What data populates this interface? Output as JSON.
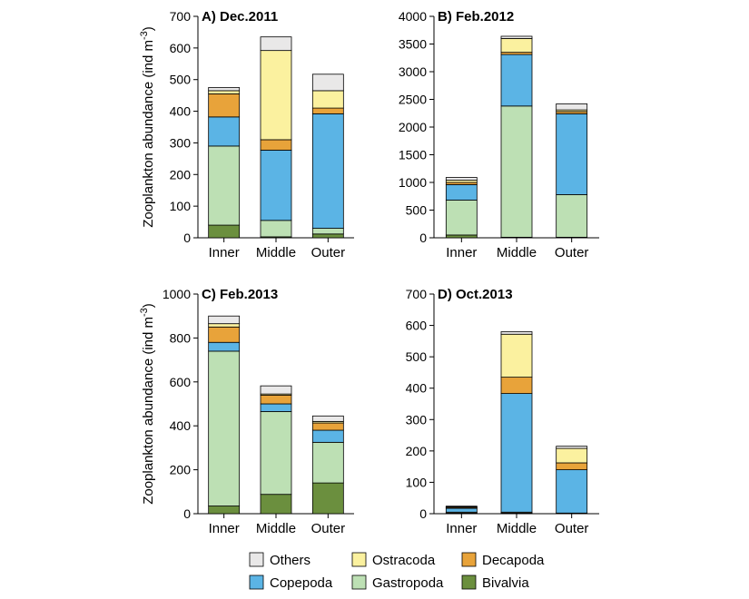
{
  "chart_data": {
    "type": "bar",
    "stacked": true,
    "legend": {
      "placement": "bottom",
      "order": [
        "Others",
        "Ostracoda",
        "Decapoda",
        "Copepoda",
        "Gastropoda",
        "Bivalvia"
      ]
    },
    "series_colors": {
      "Bivalvia": "#6b8f3e",
      "Gastropoda": "#bde0b4",
      "Copepoda": "#5bb4e5",
      "Decapoda": "#e8a33a",
      "Ostracoda": "#fbf19f",
      "Others": "#e9e8e8"
    },
    "stack_order": [
      "Bivalvia",
      "Gastropoda",
      "Copepoda",
      "Decapoda",
      "Ostracoda",
      "Others"
    ],
    "ylabel": "Zooplankton abundance (ind m",
    "ylabel_sup": "-3",
    "ylabel_close": ")",
    "panels": [
      {
        "title": "A) Dec.2011",
        "categories": [
          "Inner",
          "Middle",
          "Outer"
        ],
        "ylim": [
          0,
          700
        ],
        "yticks": [
          0,
          100,
          200,
          300,
          400,
          500,
          600,
          700
        ],
        "show_ylabel": true,
        "series": [
          {
            "name": "Bivalvia",
            "values": [
              40,
              3,
              12
            ]
          },
          {
            "name": "Gastropoda",
            "values": [
              250,
              52,
              18
            ]
          },
          {
            "name": "Copepoda",
            "values": [
              92,
              222,
              362
            ]
          },
          {
            "name": "Decapoda",
            "values": [
              73,
              33,
              18
            ]
          },
          {
            "name": "Ostracoda",
            "values": [
              10,
              282,
              55
            ]
          },
          {
            "name": "Others",
            "values": [
              10,
              43,
              52
            ]
          }
        ]
      },
      {
        "title": "B) Feb.2012",
        "categories": [
          "Inner",
          "Middle",
          "Outer"
        ],
        "ylim": [
          0,
          4000
        ],
        "yticks": [
          0,
          500,
          1000,
          1500,
          2000,
          2500,
          3000,
          3500,
          4000
        ],
        "show_ylabel": false,
        "series": [
          {
            "name": "Bivalvia",
            "values": [
              50,
              10,
              10
            ]
          },
          {
            "name": "Gastropoda",
            "values": [
              630,
              2370,
              770
            ]
          },
          {
            "name": "Copepoda",
            "values": [
              280,
              930,
              1460
            ]
          },
          {
            "name": "Decapoda",
            "values": [
              40,
              40,
              40
            ]
          },
          {
            "name": "Ostracoda",
            "values": [
              40,
              250,
              30
            ]
          },
          {
            "name": "Others",
            "values": [
              50,
              40,
              110
            ]
          }
        ]
      },
      {
        "title": "C) Feb.2013",
        "categories": [
          "Inner",
          "Middle",
          "Outer"
        ],
        "ylim": [
          0,
          1000
        ],
        "yticks": [
          0,
          200,
          400,
          600,
          800,
          1000
        ],
        "show_ylabel": true,
        "series": [
          {
            "name": "Bivalvia",
            "values": [
              35,
              88,
              140
            ]
          },
          {
            "name": "Gastropoda",
            "values": [
              705,
              377,
              185
            ]
          },
          {
            "name": "Copepoda",
            "values": [
              40,
              35,
              55
            ]
          },
          {
            "name": "Decapoda",
            "values": [
              70,
              40,
              33
            ]
          },
          {
            "name": "Ostracoda",
            "values": [
              15,
              5,
              7
            ]
          },
          {
            "name": "Others",
            "values": [
              35,
              37,
              25
            ]
          }
        ]
      },
      {
        "title": "D) Oct.2013",
        "categories": [
          "Inner",
          "Middle",
          "Outer"
        ],
        "ylim": [
          0,
          700
        ],
        "yticks": [
          0,
          100,
          200,
          300,
          400,
          500,
          600,
          700
        ],
        "show_ylabel": false,
        "series": [
          {
            "name": "Bivalvia",
            "values": [
              2,
              2,
              1
            ]
          },
          {
            "name": "Gastropoda",
            "values": [
              3,
              3,
              1
            ]
          },
          {
            "name": "Copepoda",
            "values": [
              12,
              378,
              138
            ]
          },
          {
            "name": "Decapoda",
            "values": [
              3,
              52,
              22
            ]
          },
          {
            "name": "Ostracoda",
            "values": [
              2,
              137,
              46
            ]
          },
          {
            "name": "Others",
            "values": [
              2,
              8,
              7
            ]
          }
        ]
      }
    ]
  }
}
